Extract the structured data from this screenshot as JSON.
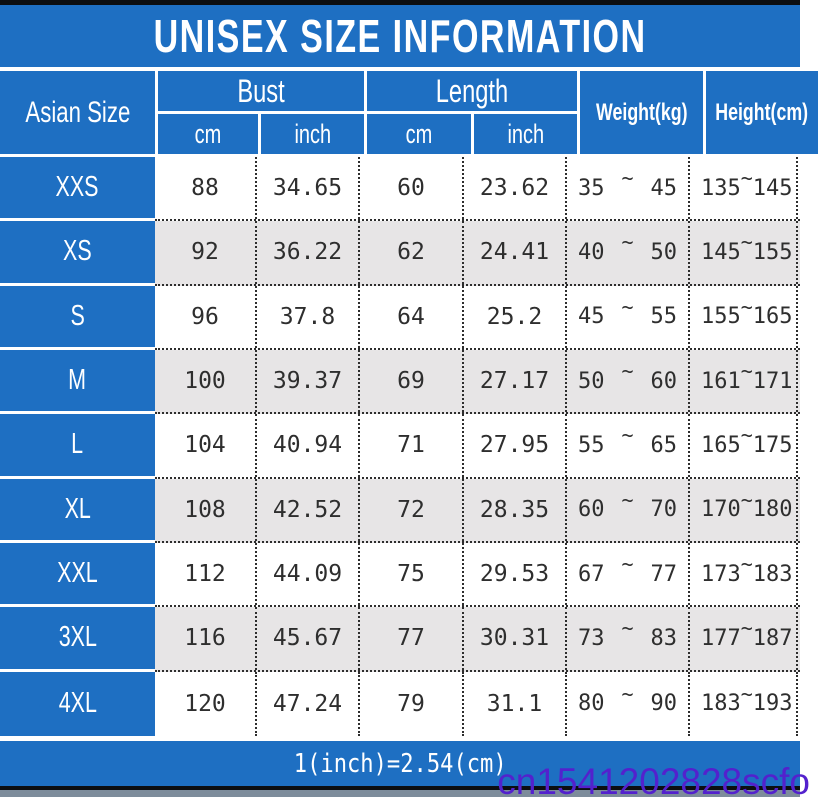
{
  "title": "UNISEX SIZE INFORMATION",
  "header": {
    "size_col": "Asian Size",
    "bust_label": "Bust",
    "length_label": "Length",
    "sub_cm_1": "cm",
    "sub_inch_1": "inch",
    "sub_cm_2": "cm",
    "sub_inch_2": "inch",
    "weight_label": "Weight(kg)",
    "height_label": "Height(cm)"
  },
  "tilde": "~",
  "rows": [
    {
      "size": "XXS",
      "bust_cm": "88",
      "bust_inch": "34.65",
      "len_cm": "60",
      "len_inch": "23.62",
      "weight_lo": "35",
      "weight_hi": "45",
      "height_lo": "135",
      "height_hi": "145"
    },
    {
      "size": "XS",
      "bust_cm": "92",
      "bust_inch": "36.22",
      "len_cm": "62",
      "len_inch": "24.41",
      "weight_lo": "40",
      "weight_hi": "50",
      "height_lo": "145",
      "height_hi": "155"
    },
    {
      "size": "S",
      "bust_cm": "96",
      "bust_inch": "37.8",
      "len_cm": "64",
      "len_inch": "25.2",
      "weight_lo": "45",
      "weight_hi": "55",
      "height_lo": "155",
      "height_hi": "165"
    },
    {
      "size": "M",
      "bust_cm": "100",
      "bust_inch": "39.37",
      "len_cm": "69",
      "len_inch": "27.17",
      "weight_lo": "50",
      "weight_hi": "60",
      "height_lo": "161",
      "height_hi": "171"
    },
    {
      "size": "L",
      "bust_cm": "104",
      "bust_inch": "40.94",
      "len_cm": "71",
      "len_inch": "27.95",
      "weight_lo": "55",
      "weight_hi": "65",
      "height_lo": "165",
      "height_hi": "175"
    },
    {
      "size": "XL",
      "bust_cm": "108",
      "bust_inch": "42.52",
      "len_cm": "72",
      "len_inch": "28.35",
      "weight_lo": "60",
      "weight_hi": "70",
      "height_lo": "170",
      "height_hi": "180"
    },
    {
      "size": "XXL",
      "bust_cm": "112",
      "bust_inch": "44.09",
      "len_cm": "75",
      "len_inch": "29.53",
      "weight_lo": "67",
      "weight_hi": "77",
      "height_lo": "173",
      "height_hi": "183"
    },
    {
      "size": "3XL",
      "bust_cm": "116",
      "bust_inch": "45.67",
      "len_cm": "77",
      "len_inch": "30.31",
      "weight_lo": "73",
      "weight_hi": "83",
      "height_lo": "177",
      "height_hi": "187"
    },
    {
      "size": "4XL",
      "bust_cm": "120",
      "bust_inch": "47.24",
      "len_cm": "79",
      "len_inch": "31.1",
      "weight_lo": "80",
      "weight_hi": "90",
      "height_lo": "183",
      "height_hi": "193"
    }
  ],
  "footer_note": "1(inch)=2.54(cm)",
  "watermark": "cn1541202828scfo",
  "colors": {
    "blue": "#1e6fc2",
    "alt_row": "#e7e5e6",
    "watermark": "#5321cd"
  },
  "chart_data": {
    "type": "table",
    "title": "UNISEX SIZE INFORMATION",
    "columns": [
      "Asian Size",
      "Bust cm",
      "Bust inch",
      "Length cm",
      "Length inch",
      "Weight(kg)",
      "Height(cm)"
    ],
    "rows": [
      [
        "XXS",
        88,
        34.65,
        60,
        23.62,
        "35~45",
        "135~145"
      ],
      [
        "XS",
        92,
        36.22,
        62,
        24.41,
        "40~50",
        "145~155"
      ],
      [
        "S",
        96,
        37.8,
        64,
        25.2,
        "45~55",
        "155~165"
      ],
      [
        "M",
        100,
        39.37,
        69,
        27.17,
        "50~60",
        "161~171"
      ],
      [
        "L",
        104,
        40.94,
        71,
        27.95,
        "55~65",
        "165~175"
      ],
      [
        "XL",
        108,
        42.52,
        72,
        28.35,
        "60~70",
        "170~180"
      ],
      [
        "XXL",
        112,
        44.09,
        75,
        29.53,
        "67~77",
        "173~183"
      ],
      [
        "3XL",
        116,
        45.67,
        77,
        30.31,
        "73~83",
        "177~187"
      ],
      [
        "4XL",
        120,
        47.24,
        79,
        31.1,
        "80~90",
        "183~193"
      ]
    ],
    "footnote": "1(inch)=2.54(cm)"
  }
}
